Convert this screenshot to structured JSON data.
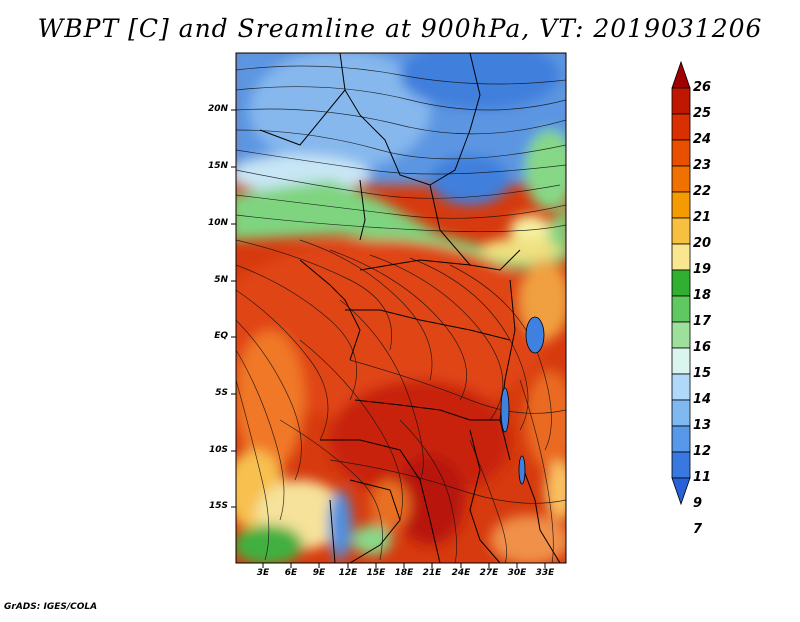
{
  "title": "WBPT [C] and Sreamline at 900hPa, VT: 2019031206",
  "footer": "GrADS: IGES/COLA",
  "lat_labels": [
    "20N",
    "15N",
    "10N",
    "5N",
    "EQ",
    "5S",
    "10S",
    "15S"
  ],
  "lon_labels": [
    "3E",
    "6E",
    "9E",
    "12E",
    "15E",
    "18E",
    "21E",
    "24E",
    "27E",
    "30E",
    "33E"
  ],
  "colorbar": {
    "labels": [
      "26",
      "25",
      "24",
      "23",
      "22",
      "21",
      "20",
      "19",
      "18",
      "17",
      "16",
      "15",
      "14",
      "13",
      "12",
      "11",
      "9",
      "7"
    ],
    "colors": [
      "#a00000",
      "#c01800",
      "#d83000",
      "#e85000",
      "#f07000",
      "#f59a00",
      "#f8c040",
      "#fbe690",
      "#30b030",
      "#60c860",
      "#9ce09c",
      "#daf5ee",
      "#b0d8f8",
      "#80b8f0",
      "#5898e8",
      "#3878e0",
      "#2860d8"
    ]
  },
  "colors": {
    "hot": "#d83a10",
    "warm": "#ee6a18",
    "cool": "#7ab0e8",
    "green": "#88d888",
    "deepblue": "#4888e0"
  }
}
